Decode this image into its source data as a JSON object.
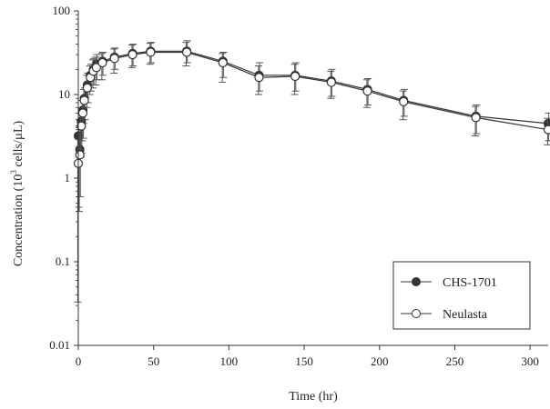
{
  "chart_data": {
    "type": "line",
    "xlabel": "Time (hr)",
    "ylabel_main": "Concentration (10",
    "ylabel_sup": "3",
    "ylabel_tail": " cells/µL)",
    "xlim": [
      0,
      312
    ],
    "ylim": [
      0.01,
      100
    ],
    "yscale": "log",
    "x_ticks": [
      0,
      50,
      100,
      150,
      200,
      250,
      300
    ],
    "y_ticks": [
      {
        "value": 0.01,
        "label": "0.01"
      },
      {
        "value": 0.1,
        "label": "0.1"
      },
      {
        "value": 1,
        "label": "1"
      },
      {
        "value": 10,
        "label": "10"
      },
      {
        "value": 100,
        "label": "100"
      }
    ],
    "legend_position": "bottom-right",
    "series": [
      {
        "name": "CHS-1701",
        "marker": "filled-circle",
        "color": "#333333",
        "points": [
          {
            "x": 0,
            "y": 3.2,
            "lo": 0.45,
            "hi": 4.2
          },
          {
            "x": 1,
            "y": 2.2,
            "lo": 0.6,
            "hi": 3.5
          },
          {
            "x": 2,
            "y": 4.8,
            "lo": 2.0,
            "hi": 6.5
          },
          {
            "x": 3,
            "y": 6.5,
            "lo": 3.0,
            "hi": 9.0
          },
          {
            "x": 4,
            "y": 9.0,
            "lo": 5.0,
            "hi": 12
          },
          {
            "x": 6,
            "y": 13,
            "lo": 8,
            "hi": 18
          },
          {
            "x": 8,
            "y": 17,
            "lo": 11,
            "hi": 23
          },
          {
            "x": 10,
            "y": 20,
            "lo": 13,
            "hi": 27
          },
          {
            "x": 12,
            "y": 23,
            "lo": 15,
            "hi": 30
          },
          {
            "x": 16,
            "y": 25,
            "lo": 17,
            "hi": 32
          },
          {
            "x": 24,
            "y": 28,
            "lo": 20,
            "hi": 36
          },
          {
            "x": 36,
            "y": 31,
            "lo": 22,
            "hi": 40
          },
          {
            "x": 48,
            "y": 33,
            "lo": 24,
            "hi": 42
          },
          {
            "x": 72,
            "y": 33,
            "lo": 24,
            "hi": 44
          },
          {
            "x": 96,
            "y": 25,
            "lo": 16,
            "hi": 32
          },
          {
            "x": 120,
            "y": 17,
            "lo": 11,
            "hi": 24
          },
          {
            "x": 144,
            "y": 17,
            "lo": 11,
            "hi": 24
          },
          {
            "x": 168,
            "y": 14.5,
            "lo": 9.5,
            "hi": 20
          },
          {
            "x": 192,
            "y": 11.5,
            "lo": 7.5,
            "hi": 15.5
          },
          {
            "x": 216,
            "y": 8.5,
            "lo": 5.5,
            "hi": 11.5
          },
          {
            "x": 264,
            "y": 5.5,
            "lo": 3.4,
            "hi": 7.5
          },
          {
            "x": 312,
            "y": 4.5,
            "lo": 2.8,
            "hi": 6.0
          }
        ]
      },
      {
        "name": "Neulasta",
        "marker": "open-circle",
        "color": "#333333",
        "points": [
          {
            "x": 0,
            "y": 1.5,
            "lo": 0.033,
            "hi": 3.0
          },
          {
            "x": 1,
            "y": 1.9,
            "lo": 0.4,
            "hi": 3.8
          },
          {
            "x": 2,
            "y": 4.2,
            "lo": 1.8,
            "hi": 6.0
          },
          {
            "x": 3,
            "y": 6.0,
            "lo": 2.8,
            "hi": 8.5
          },
          {
            "x": 4,
            "y": 8.5,
            "lo": 4.5,
            "hi": 11.5
          },
          {
            "x": 6,
            "y": 12,
            "lo": 7,
            "hi": 17
          },
          {
            "x": 8,
            "y": 16,
            "lo": 10,
            "hi": 22
          },
          {
            "x": 10,
            "y": 19,
            "lo": 12,
            "hi": 26
          },
          {
            "x": 12,
            "y": 21,
            "lo": 13,
            "hi": 28
          },
          {
            "x": 16,
            "y": 24,
            "lo": 15,
            "hi": 31
          },
          {
            "x": 24,
            "y": 27,
            "lo": 18,
            "hi": 35
          },
          {
            "x": 36,
            "y": 30,
            "lo": 21,
            "hi": 39
          },
          {
            "x": 48,
            "y": 32,
            "lo": 23,
            "hi": 41
          },
          {
            "x": 72,
            "y": 32,
            "lo": 22,
            "hi": 42
          },
          {
            "x": 96,
            "y": 24,
            "lo": 14,
            "hi": 31
          },
          {
            "x": 120,
            "y": 16,
            "lo": 10,
            "hi": 22
          },
          {
            "x": 144,
            "y": 16.5,
            "lo": 10,
            "hi": 23
          },
          {
            "x": 168,
            "y": 14,
            "lo": 9,
            "hi": 19
          },
          {
            "x": 192,
            "y": 11,
            "lo": 7,
            "hi": 15
          },
          {
            "x": 216,
            "y": 8.2,
            "lo": 5,
            "hi": 11
          },
          {
            "x": 264,
            "y": 5.3,
            "lo": 3.2,
            "hi": 7.2
          },
          {
            "x": 312,
            "y": 3.8,
            "lo": 2.5,
            "hi": 5.2
          }
        ]
      }
    ]
  }
}
